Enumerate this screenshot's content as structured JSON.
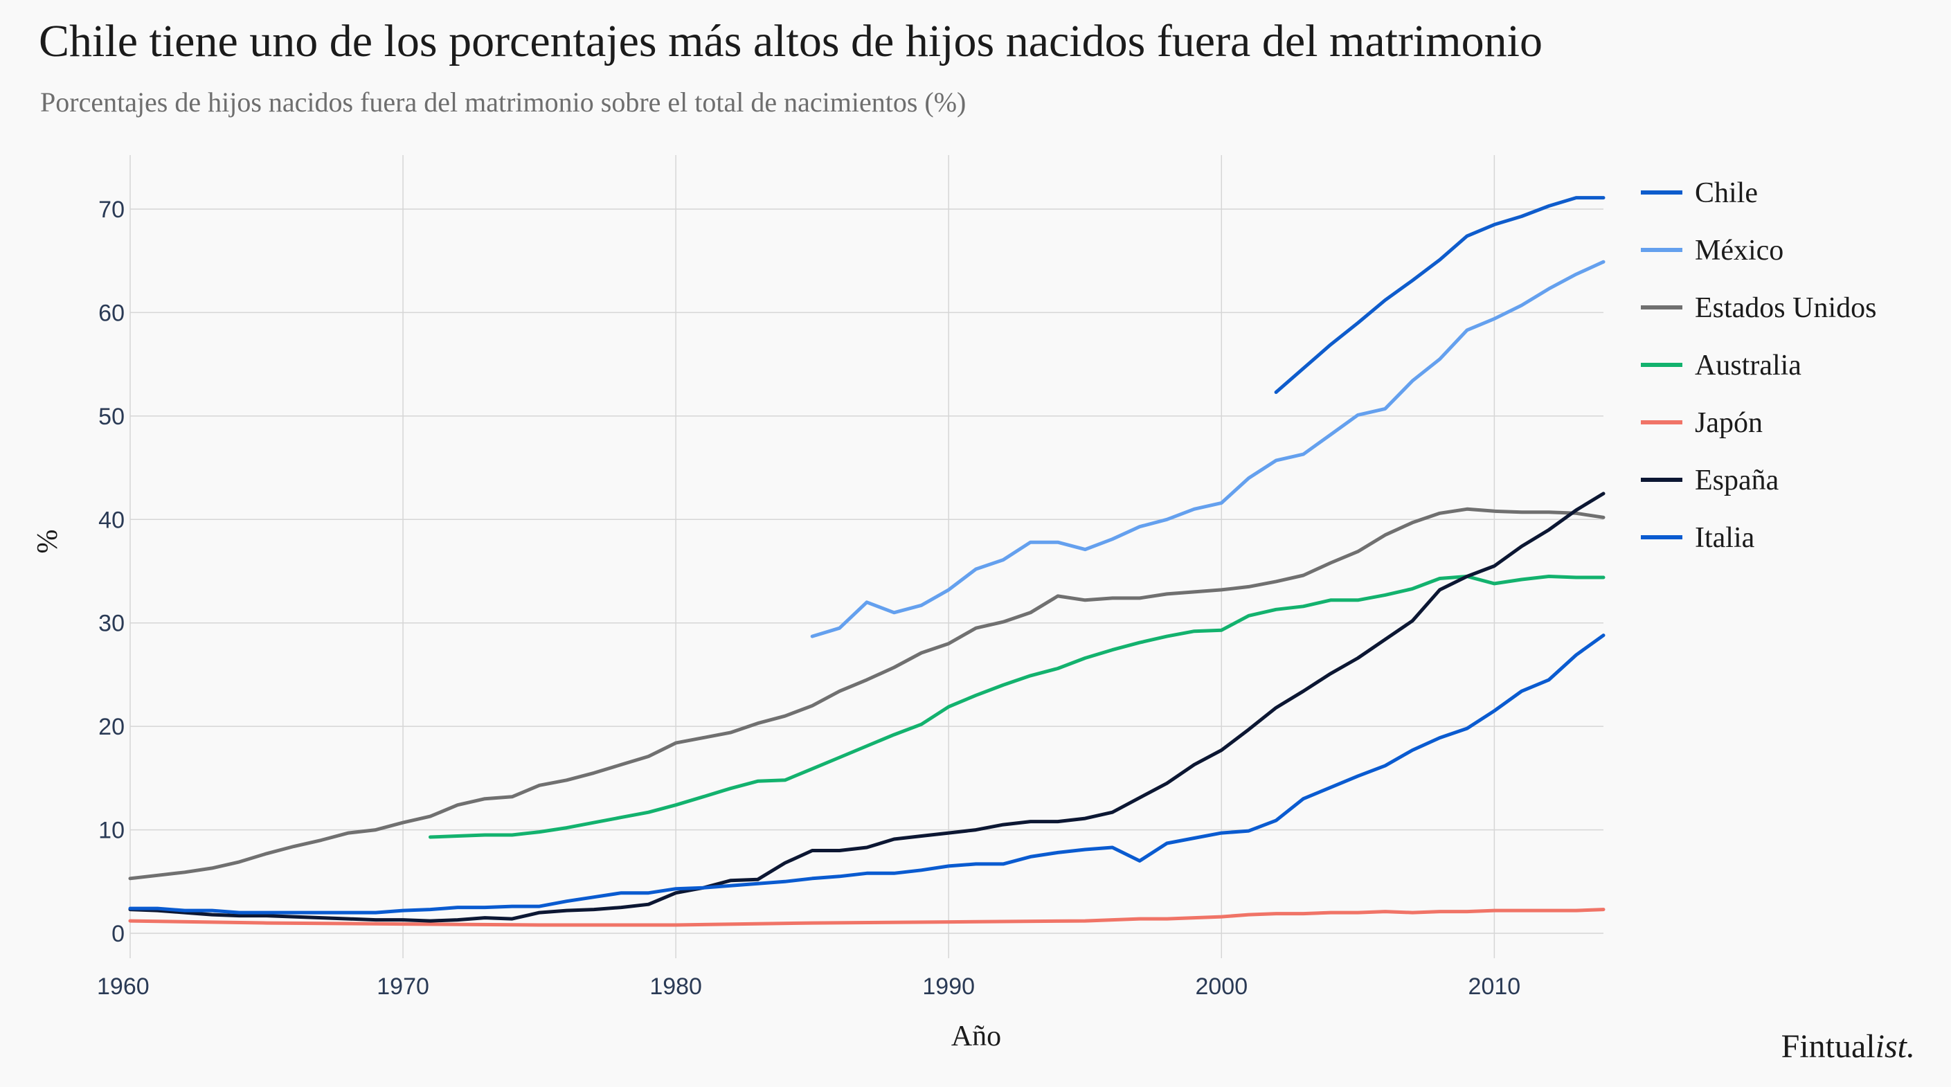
{
  "header": {
    "title": "Chile tiene uno de los porcentajes más altos de hijos nacidos fuera del matrimonio",
    "subtitle": "Porcentajes de hijos nacidos fuera del matrimonio sobre el total de nacimientos (%)"
  },
  "brand": {
    "main": "Fintual",
    "italic": "ist."
  },
  "chart_data": {
    "type": "line",
    "xlabel": "Año",
    "ylabel": "%",
    "xlim": [
      1960,
      2014
    ],
    "ylim": [
      0,
      75
    ],
    "x_ticks": [
      1960,
      1970,
      1980,
      1990,
      2000,
      2010
    ],
    "y_ticks": [
      0,
      10,
      20,
      30,
      40,
      50,
      60,
      70
    ],
    "grid": true,
    "legend_position": "right",
    "series": [
      {
        "name": "Chile",
        "color": "#0e5ccc",
        "points": [
          [
            2002,
            52.3
          ],
          [
            2003,
            54.6
          ],
          [
            2004,
            56.9
          ],
          [
            2005,
            59.0
          ],
          [
            2006,
            61.2
          ],
          [
            2007,
            63.1
          ],
          [
            2008,
            65.1
          ],
          [
            2009,
            67.4
          ],
          [
            2010,
            68.5
          ],
          [
            2011,
            69.3
          ],
          [
            2012,
            70.3
          ],
          [
            2013,
            71.1
          ],
          [
            2014,
            71.1
          ]
        ]
      },
      {
        "name": "México",
        "color": "#64a0ee",
        "points": [
          [
            1985,
            28.7
          ],
          [
            1986,
            29.5
          ],
          [
            1987,
            32.0
          ],
          [
            1988,
            31.0
          ],
          [
            1989,
            31.7
          ],
          [
            1990,
            33.2
          ],
          [
            1991,
            35.2
          ],
          [
            1992,
            36.1
          ],
          [
            1993,
            37.8
          ],
          [
            1994,
            37.8
          ],
          [
            1995,
            37.1
          ],
          [
            1996,
            38.1
          ],
          [
            1997,
            39.3
          ],
          [
            1998,
            40.0
          ],
          [
            1999,
            41.0
          ],
          [
            2000,
            41.6
          ],
          [
            2001,
            44.0
          ],
          [
            2002,
            45.7
          ],
          [
            2003,
            46.3
          ],
          [
            2004,
            48.2
          ],
          [
            2005,
            50.1
          ],
          [
            2006,
            50.7
          ],
          [
            2007,
            53.4
          ],
          [
            2008,
            55.5
          ],
          [
            2009,
            58.3
          ],
          [
            2010,
            59.4
          ],
          [
            2011,
            60.7
          ],
          [
            2012,
            62.3
          ],
          [
            2013,
            63.7
          ],
          [
            2014,
            64.9
          ]
        ]
      },
      {
        "name": "Estados Unidos",
        "color": "#707070",
        "points": [
          [
            1960,
            5.3
          ],
          [
            1961,
            5.6
          ],
          [
            1962,
            5.9
          ],
          [
            1963,
            6.3
          ],
          [
            1964,
            6.9
          ],
          [
            1965,
            7.7
          ],
          [
            1966,
            8.4
          ],
          [
            1967,
            9.0
          ],
          [
            1968,
            9.7
          ],
          [
            1969,
            10.0
          ],
          [
            1970,
            10.7
          ],
          [
            1971,
            11.3
          ],
          [
            1972,
            12.4
          ],
          [
            1973,
            13.0
          ],
          [
            1974,
            13.2
          ],
          [
            1975,
            14.3
          ],
          [
            1976,
            14.8
          ],
          [
            1977,
            15.5
          ],
          [
            1978,
            16.3
          ],
          [
            1979,
            17.1
          ],
          [
            1980,
            18.4
          ],
          [
            1981,
            18.9
          ],
          [
            1982,
            19.4
          ],
          [
            1983,
            20.3
          ],
          [
            1984,
            21.0
          ],
          [
            1985,
            22.0
          ],
          [
            1986,
            23.4
          ],
          [
            1987,
            24.5
          ],
          [
            1988,
            25.7
          ],
          [
            1989,
            27.1
          ],
          [
            1990,
            28.0
          ],
          [
            1991,
            29.5
          ],
          [
            1992,
            30.1
          ],
          [
            1993,
            31.0
          ],
          [
            1994,
            32.6
          ],
          [
            1995,
            32.2
          ],
          [
            1996,
            32.4
          ],
          [
            1997,
            32.4
          ],
          [
            1998,
            32.8
          ],
          [
            1999,
            33.0
          ],
          [
            2000,
            33.2
          ],
          [
            2001,
            33.5
          ],
          [
            2002,
            34.0
          ],
          [
            2003,
            34.6
          ],
          [
            2004,
            35.8
          ],
          [
            2005,
            36.9
          ],
          [
            2006,
            38.5
          ],
          [
            2007,
            39.7
          ],
          [
            2008,
            40.6
          ],
          [
            2009,
            41.0
          ],
          [
            2010,
            40.8
          ],
          [
            2011,
            40.7
          ],
          [
            2012,
            40.7
          ],
          [
            2013,
            40.6
          ],
          [
            2014,
            40.2
          ]
        ]
      },
      {
        "name": "Australia",
        "color": "#13b26e",
        "points": [
          [
            1971,
            9.3
          ],
          [
            1972,
            9.4
          ],
          [
            1973,
            9.5
          ],
          [
            1974,
            9.5
          ],
          [
            1975,
            9.8
          ],
          [
            1976,
            10.2
          ],
          [
            1977,
            10.7
          ],
          [
            1978,
            11.2
          ],
          [
            1979,
            11.7
          ],
          [
            1980,
            12.4
          ],
          [
            1981,
            13.2
          ],
          [
            1982,
            14.0
          ],
          [
            1983,
            14.7
          ],
          [
            1984,
            14.8
          ],
          [
            1985,
            15.9
          ],
          [
            1986,
            17.0
          ],
          [
            1987,
            18.1
          ],
          [
            1988,
            19.2
          ],
          [
            1989,
            20.2
          ],
          [
            1990,
            21.9
          ],
          [
            1991,
            23.0
          ],
          [
            1992,
            24.0
          ],
          [
            1993,
            24.9
          ],
          [
            1994,
            25.6
          ],
          [
            1995,
            26.6
          ],
          [
            1996,
            27.4
          ],
          [
            1997,
            28.1
          ],
          [
            1998,
            28.7
          ],
          [
            1999,
            29.2
          ],
          [
            2000,
            29.3
          ],
          [
            2001,
            30.7
          ],
          [
            2002,
            31.3
          ],
          [
            2003,
            31.6
          ],
          [
            2004,
            32.2
          ],
          [
            2005,
            32.2
          ],
          [
            2006,
            32.7
          ],
          [
            2007,
            33.3
          ],
          [
            2008,
            34.3
          ],
          [
            2009,
            34.5
          ],
          [
            2010,
            33.8
          ],
          [
            2011,
            34.2
          ],
          [
            2012,
            34.5
          ],
          [
            2013,
            34.4
          ],
          [
            2014,
            34.4
          ]
        ]
      },
      {
        "name": "Japón",
        "color": "#f07467",
        "points": [
          [
            1960,
            1.2
          ],
          [
            1965,
            1.0
          ],
          [
            1970,
            0.9
          ],
          [
            1975,
            0.8
          ],
          [
            1980,
            0.8
          ],
          [
            1985,
            1.0
          ],
          [
            1990,
            1.1
          ],
          [
            1995,
            1.2
          ],
          [
            1996,
            1.3
          ],
          [
            1997,
            1.4
          ],
          [
            1998,
            1.4
          ],
          [
            1999,
            1.5
          ],
          [
            2000,
            1.6
          ],
          [
            2001,
            1.8
          ],
          [
            2002,
            1.9
          ],
          [
            2003,
            1.9
          ],
          [
            2004,
            2.0
          ],
          [
            2005,
            2.0
          ],
          [
            2006,
            2.1
          ],
          [
            2007,
            2.0
          ],
          [
            2008,
            2.1
          ],
          [
            2009,
            2.1
          ],
          [
            2010,
            2.2
          ],
          [
            2011,
            2.2
          ],
          [
            2012,
            2.2
          ],
          [
            2013,
            2.2
          ],
          [
            2014,
            2.3
          ]
        ]
      },
      {
        "name": "España",
        "color": "#0c1733",
        "points": [
          [
            1960,
            2.3
          ],
          [
            1961,
            2.2
          ],
          [
            1962,
            2.0
          ],
          [
            1963,
            1.8
          ],
          [
            1964,
            1.7
          ],
          [
            1965,
            1.7
          ],
          [
            1966,
            1.6
          ],
          [
            1967,
            1.5
          ],
          [
            1968,
            1.4
          ],
          [
            1969,
            1.3
          ],
          [
            1970,
            1.3
          ],
          [
            1971,
            1.2
          ],
          [
            1972,
            1.3
          ],
          [
            1973,
            1.5
          ],
          [
            1974,
            1.4
          ],
          [
            1975,
            2.0
          ],
          [
            1976,
            2.2
          ],
          [
            1977,
            2.3
          ],
          [
            1978,
            2.5
          ],
          [
            1979,
            2.8
          ],
          [
            1980,
            3.9
          ],
          [
            1981,
            4.4
          ],
          [
            1982,
            5.1
          ],
          [
            1983,
            5.2
          ],
          [
            1984,
            6.8
          ],
          [
            1985,
            8.0
          ],
          [
            1986,
            8.0
          ],
          [
            1987,
            8.3
          ],
          [
            1988,
            9.1
          ],
          [
            1989,
            9.4
          ],
          [
            1990,
            9.7
          ],
          [
            1991,
            10.0
          ],
          [
            1992,
            10.5
          ],
          [
            1993,
            10.8
          ],
          [
            1994,
            10.8
          ],
          [
            1995,
            11.1
          ],
          [
            1996,
            11.7
          ],
          [
            1997,
            13.1
          ],
          [
            1998,
            14.5
          ],
          [
            1999,
            16.3
          ],
          [
            2000,
            17.7
          ],
          [
            2001,
            19.7
          ],
          [
            2002,
            21.8
          ],
          [
            2003,
            23.4
          ],
          [
            2004,
            25.1
          ],
          [
            2005,
            26.6
          ],
          [
            2006,
            28.4
          ],
          [
            2007,
            30.2
          ],
          [
            2008,
            33.2
          ],
          [
            2009,
            34.5
          ],
          [
            2010,
            35.5
          ],
          [
            2011,
            37.4
          ],
          [
            2012,
            39.0
          ],
          [
            2013,
            40.9
          ],
          [
            2014,
            42.5
          ]
        ]
      },
      {
        "name": "Italia",
        "color": "#0a5bd0",
        "points": [
          [
            1960,
            2.4
          ],
          [
            1961,
            2.4
          ],
          [
            1962,
            2.2
          ],
          [
            1963,
            2.2
          ],
          [
            1964,
            2.0
          ],
          [
            1965,
            2.0
          ],
          [
            1966,
            2.0
          ],
          [
            1967,
            2.0
          ],
          [
            1968,
            2.0
          ],
          [
            1969,
            2.0
          ],
          [
            1970,
            2.2
          ],
          [
            1971,
            2.3
          ],
          [
            1972,
            2.5
          ],
          [
            1973,
            2.5
          ],
          [
            1974,
            2.6
          ],
          [
            1975,
            2.6
          ],
          [
            1976,
            3.1
          ],
          [
            1977,
            3.5
          ],
          [
            1978,
            3.9
          ],
          [
            1979,
            3.9
          ],
          [
            1980,
            4.3
          ],
          [
            1981,
            4.4
          ],
          [
            1982,
            4.6
          ],
          [
            1983,
            4.8
          ],
          [
            1984,
            5.0
          ],
          [
            1985,
            5.3
          ],
          [
            1986,
            5.5
          ],
          [
            1987,
            5.8
          ],
          [
            1988,
            5.8
          ],
          [
            1989,
            6.1
          ],
          [
            1990,
            6.5
          ],
          [
            1991,
            6.7
          ],
          [
            1992,
            6.7
          ],
          [
            1993,
            7.4
          ],
          [
            1994,
            7.8
          ],
          [
            1995,
            8.1
          ],
          [
            1996,
            8.3
          ],
          [
            1997,
            7.0
          ],
          [
            1998,
            8.7
          ],
          [
            1999,
            9.2
          ],
          [
            2000,
            9.7
          ],
          [
            2001,
            9.9
          ],
          [
            2002,
            10.9
          ],
          [
            2003,
            13.0
          ],
          [
            2004,
            14.1
          ],
          [
            2005,
            15.2
          ],
          [
            2006,
            16.2
          ],
          [
            2007,
            17.7
          ],
          [
            2008,
            18.9
          ],
          [
            2009,
            19.8
          ],
          [
            2010,
            21.5
          ],
          [
            2011,
            23.4
          ],
          [
            2012,
            24.5
          ],
          [
            2013,
            26.9
          ],
          [
            2014,
            28.8
          ]
        ]
      }
    ]
  }
}
